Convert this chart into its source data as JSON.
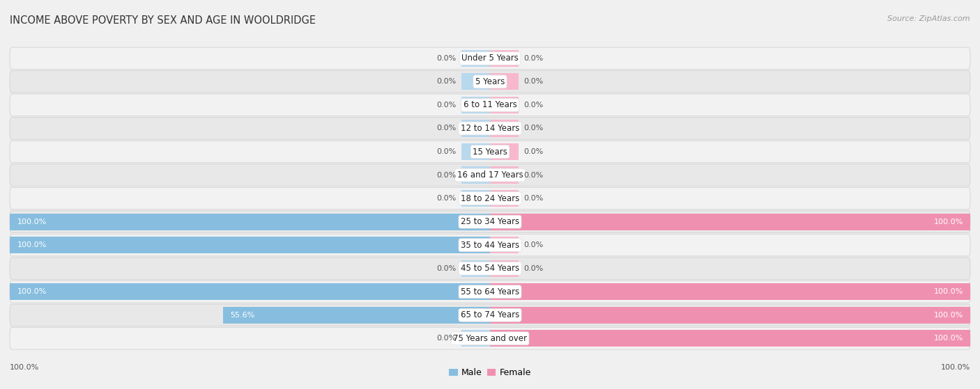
{
  "title": "INCOME ABOVE POVERTY BY SEX AND AGE IN WOOLDRIDGE",
  "source": "Source: ZipAtlas.com",
  "categories": [
    "Under 5 Years",
    "5 Years",
    "6 to 11 Years",
    "12 to 14 Years",
    "15 Years",
    "16 and 17 Years",
    "18 to 24 Years",
    "25 to 34 Years",
    "35 to 44 Years",
    "45 to 54 Years",
    "55 to 64 Years",
    "65 to 74 Years",
    "75 Years and over"
  ],
  "male_values": [
    0.0,
    0.0,
    0.0,
    0.0,
    0.0,
    0.0,
    0.0,
    100.0,
    100.0,
    0.0,
    100.0,
    55.6,
    0.0
  ],
  "female_values": [
    0.0,
    0.0,
    0.0,
    0.0,
    0.0,
    0.0,
    0.0,
    100.0,
    0.0,
    0.0,
    100.0,
    100.0,
    100.0
  ],
  "male_color": "#87bedf",
  "female_color": "#f090b0",
  "male_stub_color": "#b8d8ee",
  "female_stub_color": "#f8b8cc",
  "row_even_color": "#f2f2f2",
  "row_odd_color": "#e8e8e8",
  "label_bg_color": "#ffffff",
  "title_color": "#333333",
  "value_color_outside": "#555555",
  "value_color_inside": "#ffffff",
  "source_color": "#999999",
  "background_color": "#f0f0f0",
  "stub_size": 6.0,
  "max_val": 100.0,
  "title_fontsize": 10.5,
  "label_fontsize": 8.5,
  "value_fontsize": 8,
  "source_fontsize": 8
}
